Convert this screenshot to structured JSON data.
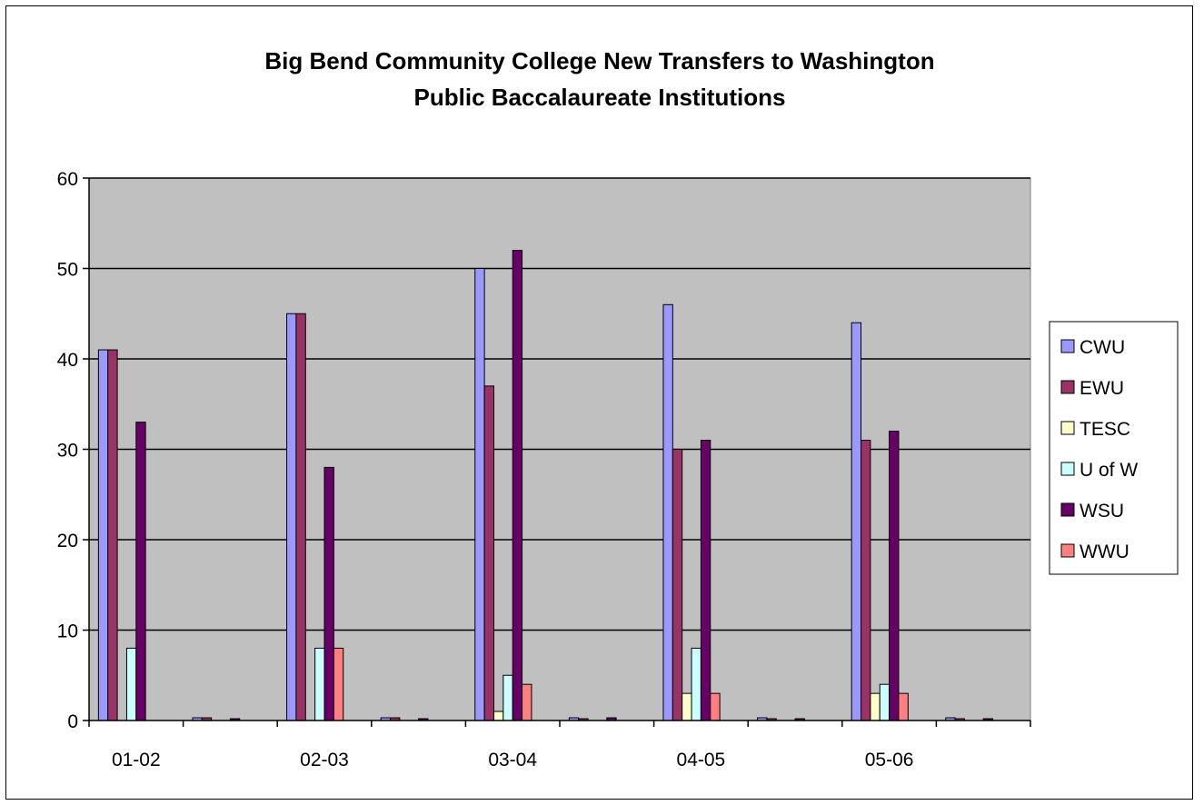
{
  "chart_data": {
    "type": "bar",
    "title_lines": [
      "Big Bend Community College New Transfers to Washington",
      "Public Baccalaureate Institutions"
    ],
    "categories": [
      "01-02",
      "",
      "02-03",
      "",
      "03-04",
      "",
      "04-05",
      "",
      "05-06",
      ""
    ],
    "ylim": [
      0,
      60
    ],
    "yticks": [
      0,
      10,
      20,
      30,
      40,
      50,
      60
    ],
    "grid": true,
    "legend_position": "right",
    "plot_background": "#c0c0c0",
    "series": [
      {
        "name": "CWU",
        "color": "#9999ff",
        "values": [
          41,
          0.3,
          45,
          0.3,
          50,
          0.3,
          46,
          0.3,
          44,
          0.3
        ]
      },
      {
        "name": "EWU",
        "color": "#993366",
        "values": [
          41,
          0.3,
          45,
          0.3,
          37,
          0.1,
          30,
          0.1,
          31,
          0.1
        ]
      },
      {
        "name": "TESC",
        "color": "#ffffcc",
        "values": [
          0,
          0,
          0,
          0,
          1,
          0,
          3,
          0,
          3,
          0
        ]
      },
      {
        "name": "U of W",
        "color": "#ccffff",
        "values": [
          8,
          0,
          8,
          0,
          5,
          0,
          8,
          0,
          4,
          0
        ]
      },
      {
        "name": "WSU",
        "color": "#660066",
        "values": [
          33,
          0.1,
          28,
          0.1,
          52,
          0.3,
          31,
          0.1,
          32,
          0.1
        ]
      },
      {
        "name": "WWU",
        "color": "#ff8080",
        "values": [
          0,
          0,
          8,
          0,
          4,
          0,
          3,
          0,
          3,
          0
        ]
      }
    ]
  }
}
